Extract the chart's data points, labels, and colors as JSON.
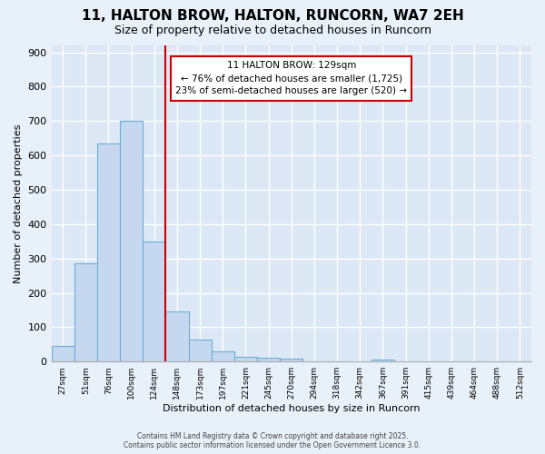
{
  "title": "11, HALTON BROW, HALTON, RUNCORN, WA7 2EH",
  "subtitle": "Size of property relative to detached houses in Runcorn",
  "xlabel": "Distribution of detached houses by size in Runcorn",
  "ylabel": "Number of detached properties",
  "bar_values": [
    45,
    285,
    635,
    700,
    350,
    145,
    65,
    30,
    13,
    10,
    8,
    0,
    0,
    0,
    5,
    0,
    0,
    0,
    0,
    0,
    0
  ],
  "bin_labels": [
    "27sqm",
    "51sqm",
    "76sqm",
    "100sqm",
    "124sqm",
    "148sqm",
    "173sqm",
    "197sqm",
    "221sqm",
    "245sqm",
    "270sqm",
    "294sqm",
    "318sqm",
    "342sqm",
    "367sqm",
    "391sqm",
    "415sqm",
    "439sqm",
    "464sqm",
    "488sqm",
    "512sqm"
  ],
  "bar_color": "#c5d8f0",
  "bar_edge_color": "#6baed6",
  "background_color": "#e8f0fa",
  "plot_bg_color": "#dce8f5",
  "grid_color": "#ffffff",
  "annotation_text_line1": "11 HALTON BROW: 129sqm",
  "annotation_text_line2": "← 76% of detached houses are smaller (1,725)",
  "annotation_text_line3": "23% of semi-detached houses are larger (520) →",
  "red_line_color": "#cc0000",
  "annotation_box_color": "#ffffff",
  "annotation_box_edge": "#cc0000",
  "ylim": [
    0,
    920
  ],
  "yticks": [
    0,
    100,
    200,
    300,
    400,
    500,
    600,
    700,
    800,
    900
  ],
  "footer_line1": "Contains HM Land Registry data © Crown copyright and database right 2025.",
  "footer_line2": "Contains public sector information licensed under the Open Government Licence 3.0."
}
